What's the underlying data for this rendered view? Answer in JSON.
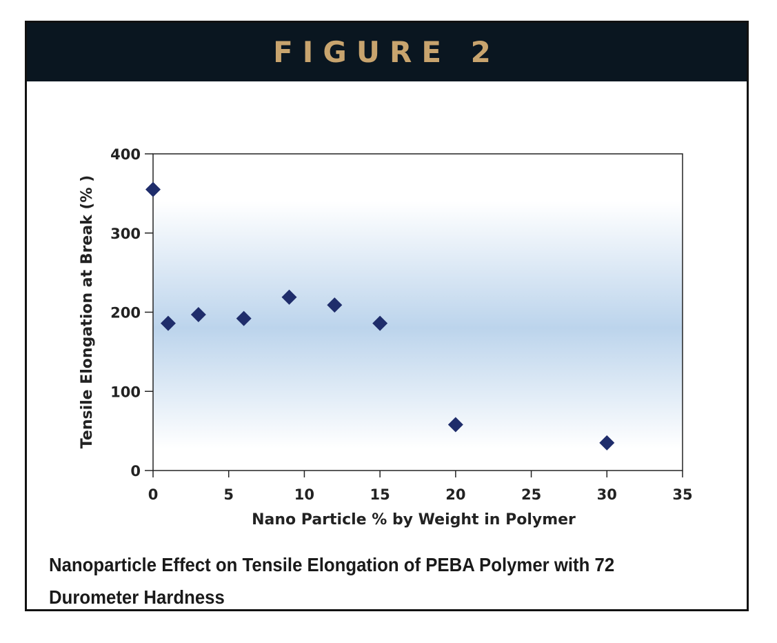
{
  "header": {
    "title": "FIGURE 2"
  },
  "caption": "Nanoparticle Effect on Tensile Elongation of PEBA Polymer with 72 Durometer Hardness",
  "colors": {
    "header_bg": "#0a1620",
    "header_text": "#c8a46e",
    "marker": "#1f2d6b",
    "band": "#bcd4ec"
  },
  "chart_data": {
    "type": "scatter",
    "title": "",
    "xlabel": "Nano Particle % by Weight in Polymer",
    "ylabel": "Tensile Elongation at Break (% )",
    "xlim": [
      0,
      35
    ],
    "ylim": [
      0,
      400
    ],
    "xticks": [
      0,
      5,
      10,
      15,
      20,
      25,
      30,
      35
    ],
    "yticks": [
      0,
      100,
      200,
      300,
      400
    ],
    "marker": "diamond",
    "grid": false,
    "series": [
      {
        "x": [
          0,
          1,
          3,
          6,
          9,
          12,
          15,
          20,
          30
        ],
        "y": [
          355,
          186,
          197,
          192,
          219,
          209,
          186,
          58,
          35
        ]
      }
    ]
  }
}
